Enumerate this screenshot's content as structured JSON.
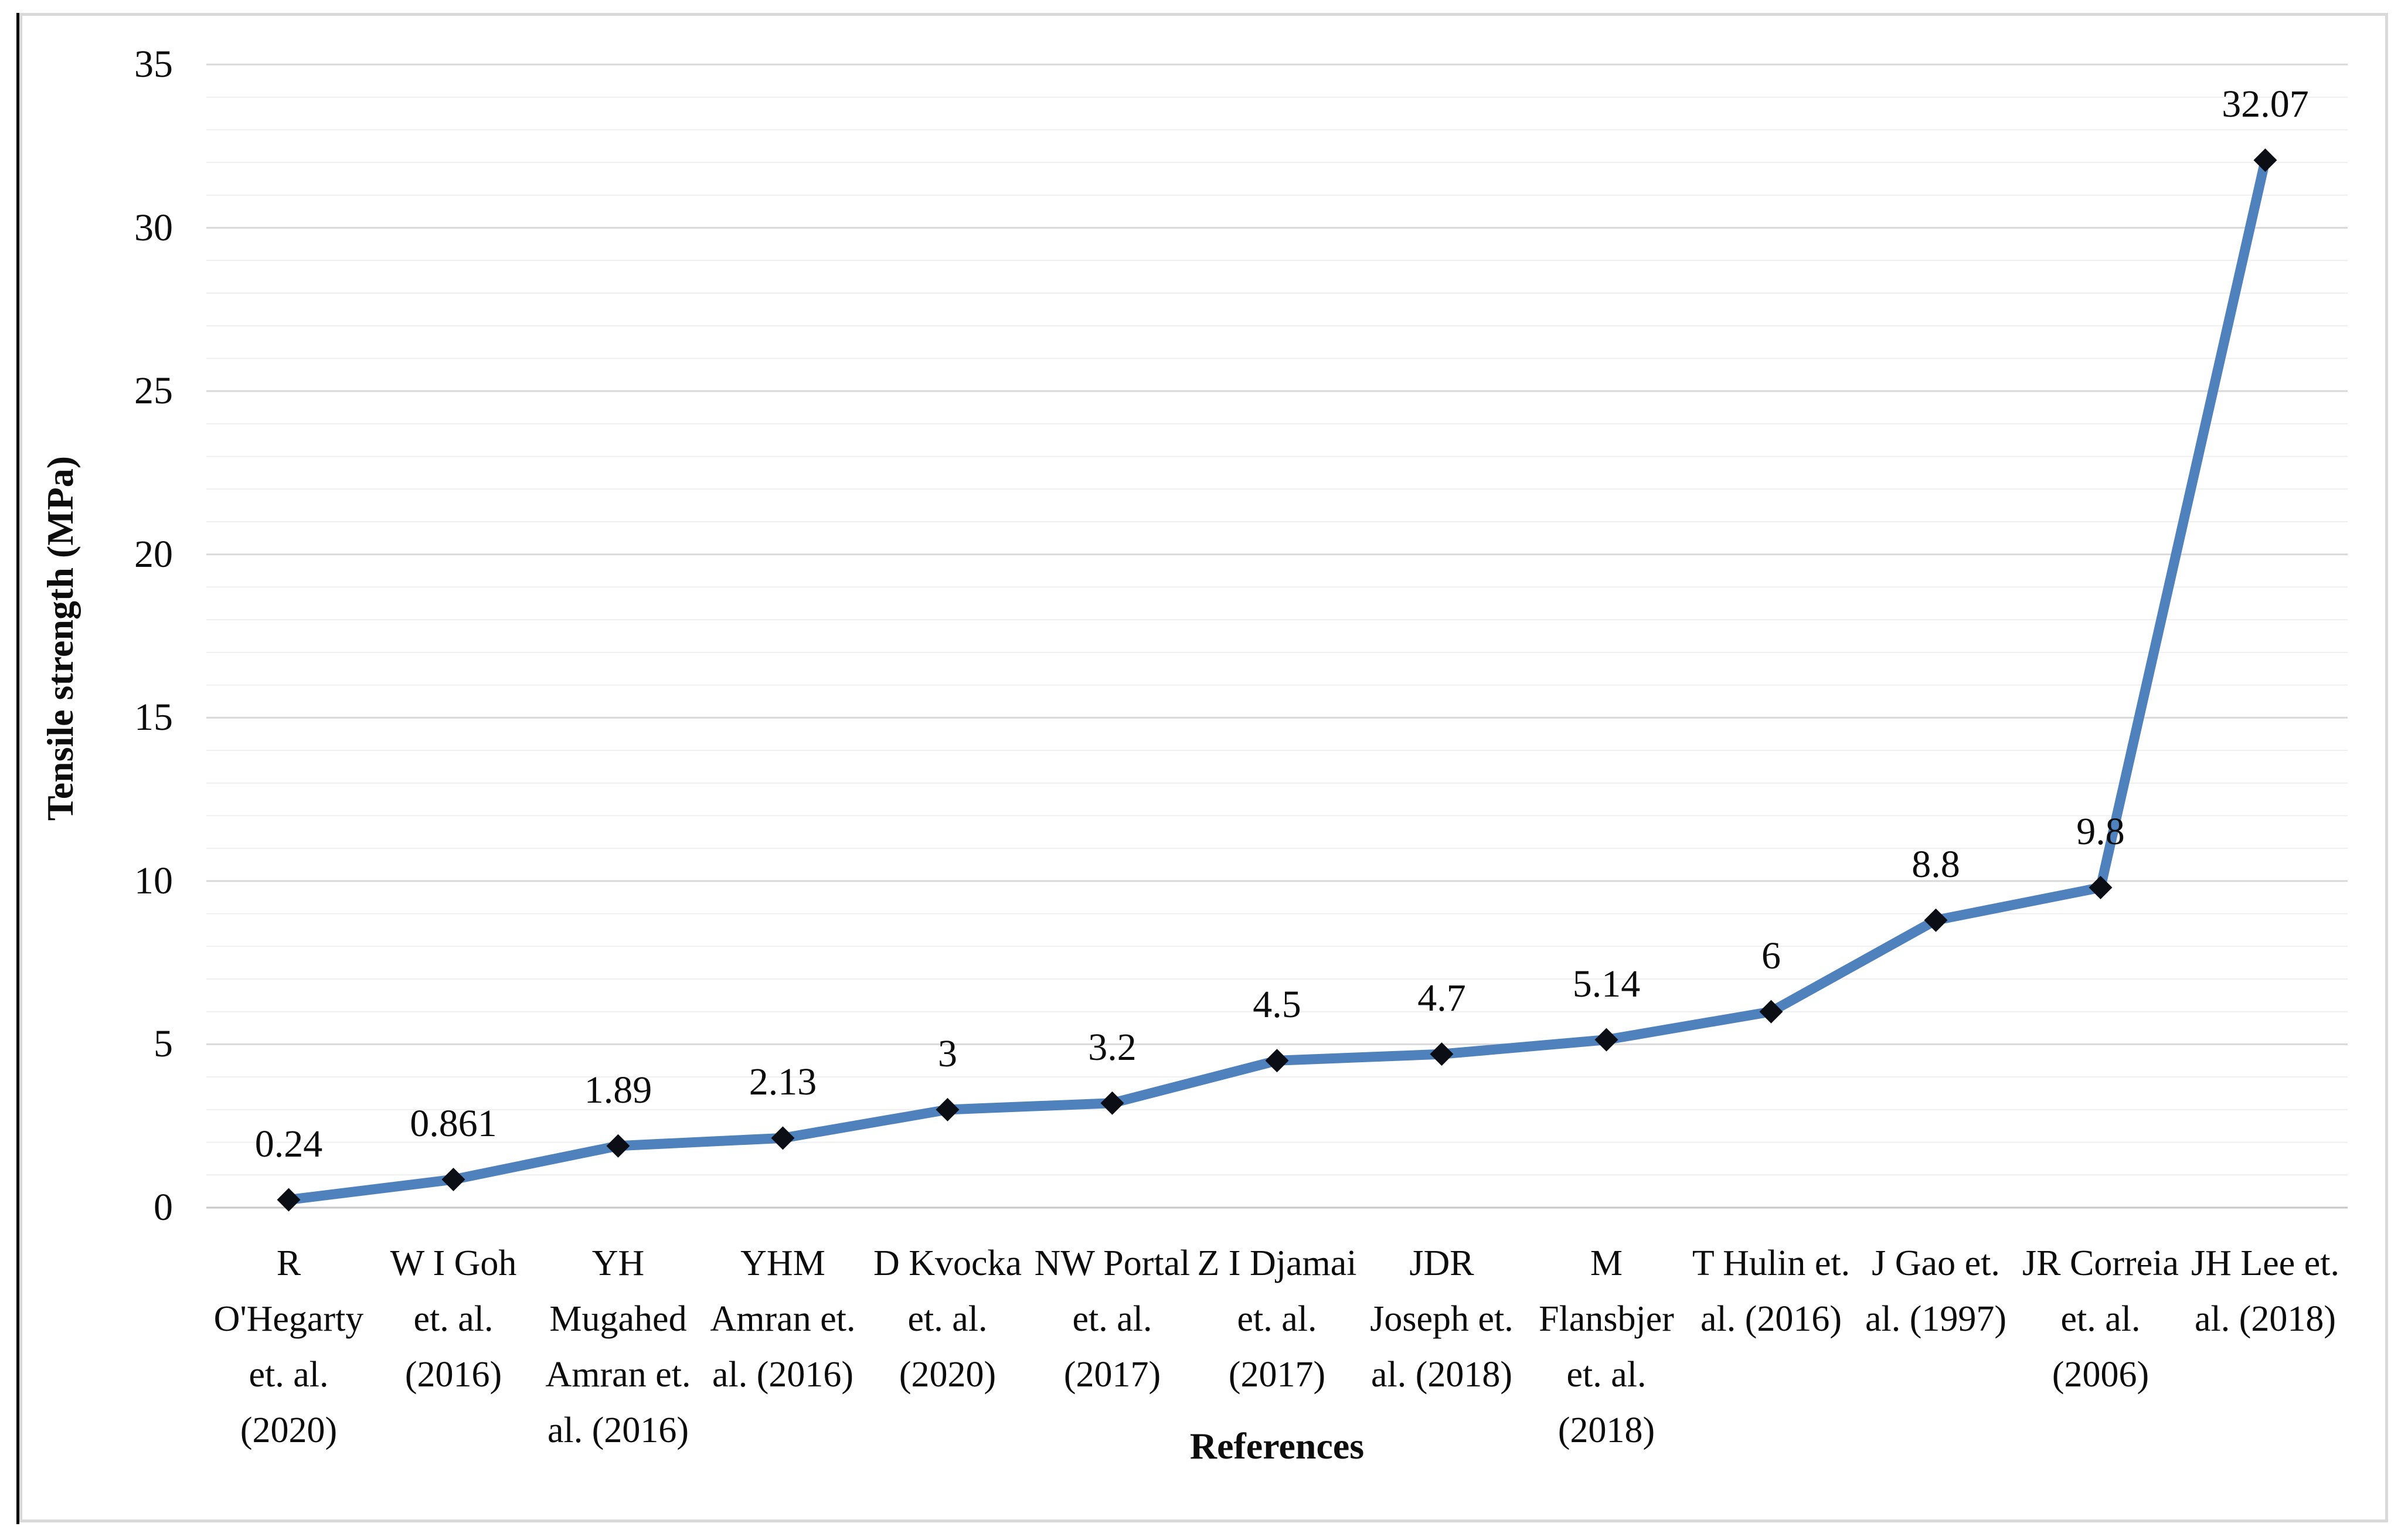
{
  "chart_data": {
    "type": "line",
    "title": "",
    "xlabel": "References",
    "ylabel": "Tensile strength (MPa)",
    "ylim": [
      0,
      35
    ],
    "y_ticks": [
      0,
      5,
      10,
      15,
      20,
      25,
      30,
      35
    ],
    "y_minor_step": 1,
    "grid": "horizontal, major and minor, no vertical gridlines",
    "legend": "none",
    "marker": "diamond",
    "series_color": "#4f81bd",
    "marker_color": "#0c0e16",
    "categories": [
      "R\nO'Hegarty\net. al.\n(2020)",
      "W I Goh\net. al.\n(2016)",
      "YH\nMugahed\nAmran et.\nal. (2016)",
      "YHM\nAmran et.\nal. (2016)",
      "D Kvocka\net. al.\n(2020)",
      "NW Portal\net. al.\n(2017)",
      "Z I Djamai\net. al.\n(2017)",
      "JDR\nJoseph et.\nal. (2018)",
      "M\nFlansbjer\net. al.\n(2018)",
      "T Hulin et.\nal. (2016)",
      "J Gao et.\nal. (1997)",
      "JR Correia\net. al.\n(2006)",
      "JH Lee et.\nal. (2018)"
    ],
    "values": [
      0.24,
      0.861,
      1.89,
      2.13,
      3,
      3.2,
      4.5,
      4.7,
      5.14,
      6,
      8.8,
      9.8,
      32.07
    ],
    "data_labels": [
      "0.24",
      "0.861",
      "1.89",
      "2.13",
      "3",
      "3.2",
      "4.5",
      "4.7",
      "5.14",
      "6",
      "8.8",
      "9.8",
      "32.07"
    ]
  }
}
